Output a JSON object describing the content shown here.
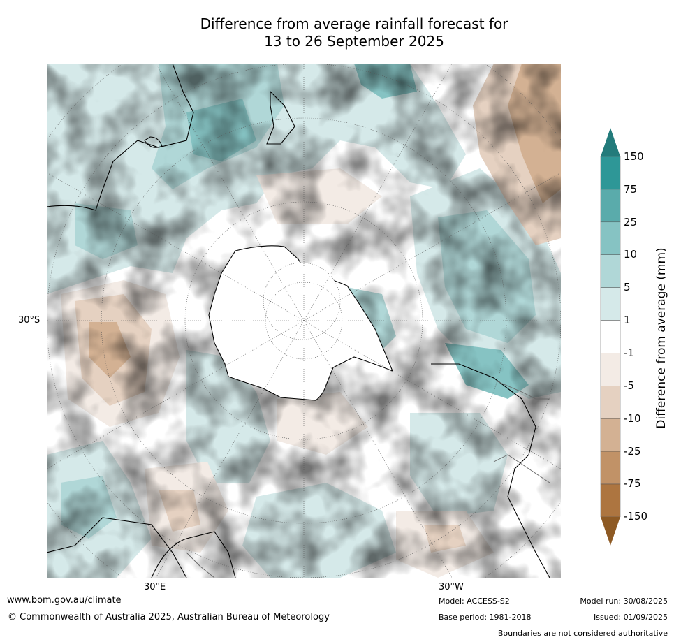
{
  "title": {
    "line1": "Difference from average rainfall forecast for",
    "line2": "13 to 26 September 2025"
  },
  "map": {
    "projection": "south polar stereographic",
    "latitude_label": "30°S",
    "longitude_labels": [
      "30°E",
      "30°W"
    ]
  },
  "colorbar": {
    "title": "Difference from average (mm)",
    "labels": [
      "150",
      "75",
      "25",
      "10",
      "5",
      "1",
      "-1",
      "-5",
      "-10",
      "-25",
      "-75",
      "-150"
    ],
    "colors": {
      "above_150": "#237b7b",
      "75_150": "#2e9797",
      "25_75": "#5aabab",
      "10_25": "#86c3c3",
      "5_10": "#b0d7d7",
      "1_5": "#d5e9e9",
      "neg1_1": "#ffffff",
      "neg5_neg1": "#f3ebe5",
      "neg10_neg5": "#e5d1c1",
      "neg25_neg10": "#d3b193",
      "neg75_neg25": "#c19267",
      "neg150_neg75": "#ad7540",
      "below_neg150": "#8e5a24"
    }
  },
  "footer": {
    "website": "www.bom.gov.au/climate",
    "copyright": "© Commonwealth of Australia 2025, Australian Bureau of Meteorology",
    "model": "Model: ACCESS-S2",
    "base_period": "Base period: 1981-2018",
    "model_run": "Model run: 30/08/2025",
    "issued": "Issued: 01/09/2025",
    "disclaimer": "Boundaries are not considered authoritative"
  }
}
